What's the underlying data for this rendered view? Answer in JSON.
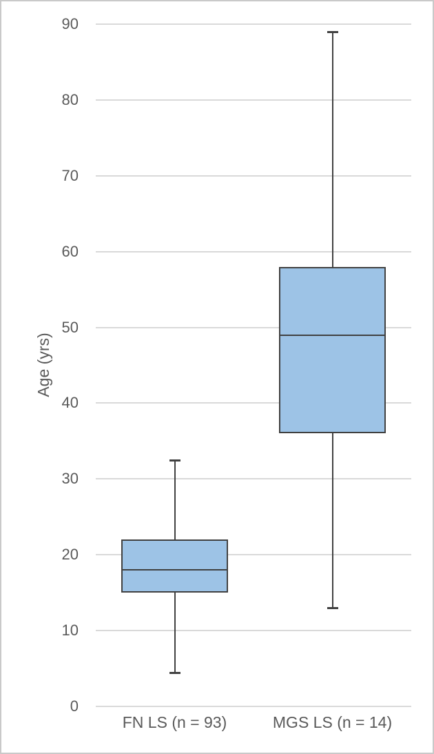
{
  "chart_data": {
    "type": "boxplot",
    "title": "",
    "xlabel": "",
    "ylabel": "Age (yrs)",
    "ylim": [
      0,
      90
    ],
    "yticks": [
      0,
      10,
      20,
      30,
      40,
      50,
      60,
      70,
      80,
      90
    ],
    "grid": true,
    "legend": false,
    "categories": [
      "FN LS (n = 93)",
      "MGS LS (n = 14)"
    ],
    "series": [
      {
        "name": "FN LS (n = 93)",
        "min": 4.5,
        "q1": 15,
        "median": 18,
        "q3": 22,
        "max": 32.5
      },
      {
        "name": "MGS LS (n = 14)",
        "min": 13,
        "q1": 36,
        "median": 49,
        "q3": 58,
        "max": 89
      }
    ],
    "colors": {
      "box_fill": "#9DC3E6",
      "box_border": "#404040",
      "whisker": "#404040",
      "median": "#404040",
      "gridline": "#D9D9D9",
      "axis_text": "#595959",
      "frame_border": "#C9C9C9"
    }
  }
}
